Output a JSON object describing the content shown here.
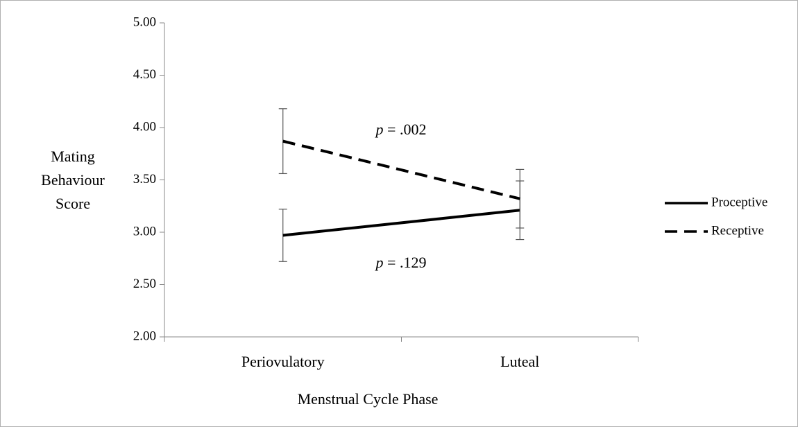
{
  "chart_data": {
    "type": "line",
    "xlabel": "Menstrual Cycle Phase",
    "ylabel": [
      "Mating",
      "Behaviour",
      "Score"
    ],
    "categories": [
      "Periovulatory",
      "Luteal"
    ],
    "series": [
      {
        "name": "Proceptive",
        "color": "#000000",
        "dash": "solid",
        "values": [
          2.97,
          3.21
        ],
        "errors": [
          0.25,
          0.28
        ]
      },
      {
        "name": "Receptive",
        "color": "#000000",
        "dash": "dashed",
        "values": [
          3.87,
          3.32
        ],
        "errors": [
          0.31,
          0.28
        ]
      }
    ],
    "annotations": [
      {
        "var": "p",
        "text": "= .002"
      },
      {
        "var": "p",
        "text": "= .129"
      }
    ],
    "ylim": [
      2,
      5
    ],
    "yticks": [
      {
        "value": 2,
        "label": "2.00"
      },
      {
        "value": 2.5,
        "label": "2.50"
      },
      {
        "value": 3,
        "label": "3.00"
      },
      {
        "value": 3.5,
        "label": "3.50"
      },
      {
        "value": 4,
        "label": "4.00"
      },
      {
        "value": 4.5,
        "label": "4.50"
      },
      {
        "value": 5,
        "label": "5.00"
      }
    ],
    "grid": false,
    "legend": "right"
  }
}
